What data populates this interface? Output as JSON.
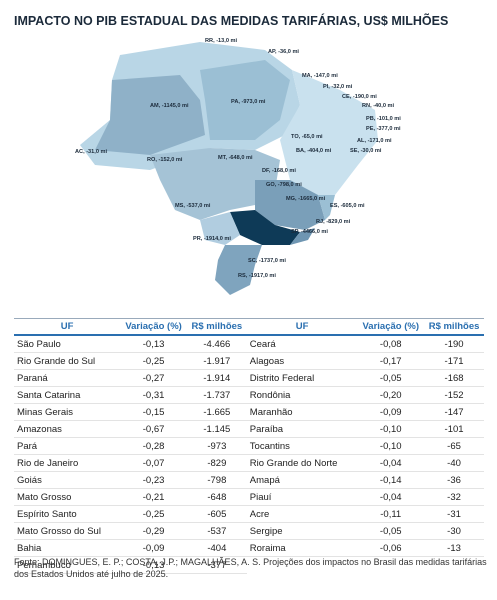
{
  "title": "IMPACTO NO PIB ESTADUAL DAS MEDIDAS TARIFÁRIAS, US$ MILHÕES",
  "map": {
    "labels": [
      "RR, -13,0 mi",
      "AP, -36,0 mi",
      "MA, -147,0 mi",
      "PI, -32,0 mi",
      "CE, -190,0 mi",
      "RN, -40,0 mi",
      "PB, -101,0 mi",
      "PE, -377,0 mi",
      "AL, -171,0 mi",
      "SE, -30,0 mi",
      "AM, -1145,0 mi",
      "PA, -973,0 mi",
      "TO, -65,0 mi",
      "BA, -404,0 mi",
      "AC, -31,0 mi",
      "RO, -152,0 mi",
      "MT, -648,0 mi",
      "DF, -168,0 mi",
      "GO, -798,0 mi",
      "MG, -1665,0 mi",
      "ES, -605,0 mi",
      "MS, -537,0 mi",
      "RJ, -829,0 mi",
      "SP, -4466,0 mi",
      "PR, -1914,0 mi",
      "SC, -1737,0 mi",
      "RS, -1917,0 mi"
    ]
  },
  "table": {
    "header": [
      "UF",
      "Variação (%)",
      "R$ milhões",
      "UF",
      "Variação (%)",
      "R$ milhões"
    ],
    "rows": [
      [
        "São Paulo",
        "-0,13",
        "-4.466",
        "Ceará",
        "-0,08",
        "-190"
      ],
      [
        "Rio Grande do Sul",
        "-0,25",
        "-1.917",
        "Alagoas",
        "-0,17",
        "-171"
      ],
      [
        "Paraná",
        "-0,27",
        "-1.914",
        "Distrito Federal",
        "-0,05",
        "-168"
      ],
      [
        "Santa Catarina",
        "-0,31",
        "-1.737",
        "Rondônia",
        "-0,20",
        "-152"
      ],
      [
        "Minas Gerais",
        "-0,15",
        "-1.665",
        "Maranhão",
        "-0,09",
        "-147"
      ],
      [
        "Amazonas",
        "-0,67",
        "-1.145",
        "Paraíba",
        "-0,10",
        "-101"
      ],
      [
        "Pará",
        "-0,28",
        "-973",
        "Tocantins",
        "-0,10",
        "-65"
      ],
      [
        "Rio de Janeiro",
        "-0,07",
        "-829",
        "Rio Grande do Norte",
        "-0,04",
        "-40"
      ],
      [
        "Goiás",
        "-0,23",
        "-798",
        "Amapá",
        "-0,14",
        "-36"
      ],
      [
        "Mato Grosso",
        "-0,21",
        "-648",
        "Piauí",
        "-0,04",
        "-32"
      ],
      [
        "Espírito Santo",
        "-0,25",
        "-605",
        "Acre",
        "-0,11",
        "-31"
      ],
      [
        "Mato Grosso do Sul",
        "-0,29",
        "-537",
        "Sergipe",
        "-0,05",
        "-30"
      ],
      [
        "Bahia",
        "-0,09",
        "-404",
        "Roraima",
        "-0,06",
        "-13"
      ],
      [
        "Pernambuco",
        "-0,13",
        "-377"
      ]
    ]
  },
  "source": "Fonte: DOMINGUES, E. P.; COSTA, J.P.; MAGALHÃES, A. S. Projeções dos impactos no Brasil das medidas tarifárias dos Estados Unidos até julho de 2025."
}
